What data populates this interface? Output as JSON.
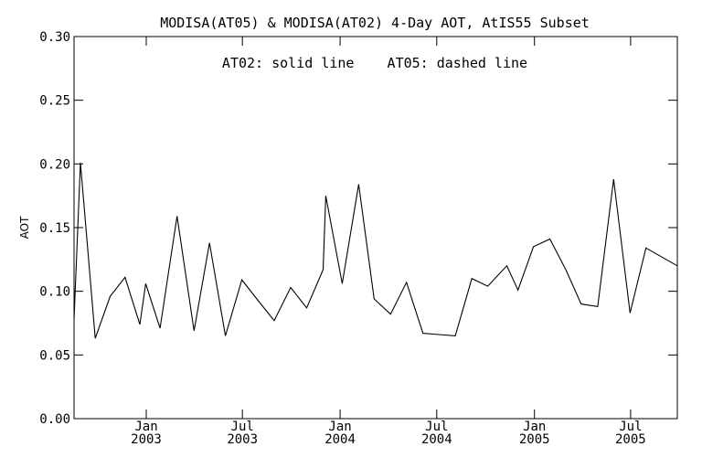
{
  "chart_data": {
    "type": "line",
    "title": "MODISA(AT05) & MODISA(AT02) 4-Day AOT, AtIS55 Subset",
    "annotation": "AT02: solid line    AT05: dashed line",
    "ylabel": "AOT",
    "xlabel": "",
    "ylim": [
      0.0,
      0.3
    ],
    "yticks": [
      "0.00",
      "0.05",
      "0.10",
      "0.15",
      "0.20",
      "0.25",
      "0.30"
    ],
    "xlim": [
      "2002-08-18",
      "2005-09-27"
    ],
    "xticks": [
      {
        "date": "2003-01-01",
        "line1": "Jan",
        "line2": "2003"
      },
      {
        "date": "2003-07-01",
        "line1": "Jul",
        "line2": "2003"
      },
      {
        "date": "2004-01-01",
        "line1": "Jan",
        "line2": "2004"
      },
      {
        "date": "2004-07-01",
        "line1": "Jul",
        "line2": "2004"
      },
      {
        "date": "2005-01-01",
        "line1": "Jan",
        "line2": "2005"
      },
      {
        "date": "2005-07-01",
        "line1": "Jul",
        "line2": "2005"
      }
    ],
    "grid": false,
    "series": [
      {
        "style": "solid",
        "points": [
          [
            "2002-08-18",
            0.078
          ],
          [
            "2002-08-30",
            0.201
          ],
          [
            "2002-09-27",
            0.063
          ],
          [
            "2002-10-25",
            0.096
          ],
          [
            "2002-11-22",
            0.111
          ],
          [
            "2002-12-20",
            0.074
          ],
          [
            "2002-12-31",
            0.106
          ],
          [
            "2003-01-27",
            0.071
          ],
          [
            "2003-02-28",
            0.159
          ],
          [
            "2003-04-01",
            0.069
          ],
          [
            "2003-04-30",
            0.138
          ],
          [
            "2003-05-30",
            0.065
          ],
          [
            "2003-06-30",
            0.109
          ],
          [
            "2003-07-30",
            0.093
          ],
          [
            "2003-08-30",
            0.077
          ],
          [
            "2003-09-30",
            0.103
          ],
          [
            "2003-10-30",
            0.087
          ],
          [
            "2003-11-30",
            0.117
          ],
          [
            "2003-12-05",
            0.175
          ],
          [
            "2004-01-05",
            0.106
          ],
          [
            "2004-02-05",
            0.184
          ],
          [
            "2004-03-05",
            0.094
          ],
          [
            "2004-04-05",
            0.082
          ],
          [
            "2004-05-05",
            0.107
          ],
          [
            "2004-06-05",
            0.067
          ],
          [
            "2004-07-05",
            0.066
          ],
          [
            "2004-08-05",
            0.065
          ],
          [
            "2004-09-05",
            0.11
          ],
          [
            "2004-10-05",
            0.104
          ],
          [
            "2004-11-10",
            0.12
          ],
          [
            "2004-12-01",
            0.101
          ],
          [
            "2004-12-30",
            0.135
          ],
          [
            "2005-01-30",
            0.141
          ],
          [
            "2005-03-01",
            0.117
          ],
          [
            "2005-03-30",
            0.09
          ],
          [
            "2005-04-30",
            0.088
          ],
          [
            "2005-05-30",
            0.188
          ],
          [
            "2005-06-30",
            0.083
          ],
          [
            "2005-07-30",
            0.134
          ],
          [
            "2005-09-27",
            0.12
          ]
        ]
      }
    ]
  }
}
